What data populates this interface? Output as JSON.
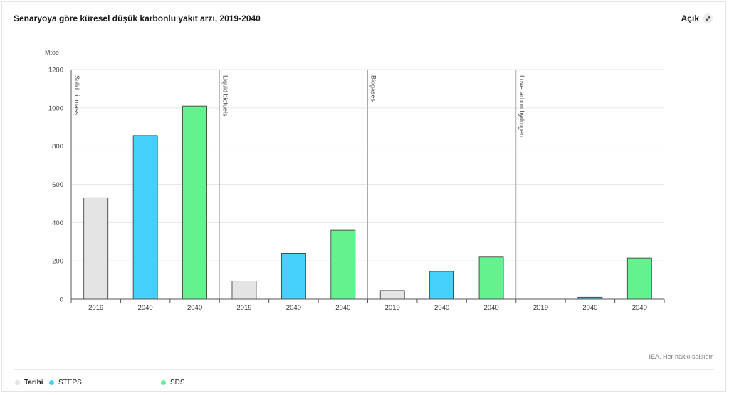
{
  "header": {
    "title": "Senaryoya göre küresel düşük karbonlu yakıt arzı, 2019-2040",
    "open_label": "Açık"
  },
  "source_note": "IEA. Her hakkı saklıdır",
  "colors": {
    "historical": "#e4e4e4",
    "steps": "#45d0fd",
    "sds": "#63f28e",
    "axis": "#555555",
    "grid": "#e6e6e6",
    "divider": "#aaaaaa"
  },
  "legend": [
    {
      "label": "Tarihi",
      "color": "#e4e4e4",
      "active": true
    },
    {
      "label": "STEPS",
      "color": "#45d0fd",
      "active": false
    },
    {
      "label": "SDS",
      "color": "#63f28e",
      "active": false
    }
  ],
  "chart_data": {
    "type": "bar",
    "ylabel": "Mtoe",
    "ylim": [
      0,
      1200
    ],
    "yticks": [
      0,
      200,
      400,
      600,
      800,
      1000,
      1200
    ],
    "grid": true,
    "groups": [
      {
        "name": "Solid biomass",
        "bars": [
          {
            "category": "2019",
            "series": "Tarihi",
            "value": 530
          },
          {
            "category": "2040",
            "series": "STEPS",
            "value": 855
          },
          {
            "category": "2040",
            "series": "SDS",
            "value": 1010
          }
        ]
      },
      {
        "name": "Liquid biofuels",
        "bars": [
          {
            "category": "2019",
            "series": "Tarihi",
            "value": 95
          },
          {
            "category": "2040",
            "series": "STEPS",
            "value": 240
          },
          {
            "category": "2040",
            "series": "SDS",
            "value": 360
          }
        ]
      },
      {
        "name": "Biogases",
        "bars": [
          {
            "category": "2019",
            "series": "Tarihi",
            "value": 45
          },
          {
            "category": "2040",
            "series": "STEPS",
            "value": 145
          },
          {
            "category": "2040",
            "series": "SDS",
            "value": 220
          }
        ]
      },
      {
        "name": "Low-carbon hydrogen",
        "bars": [
          {
            "category": "2019",
            "series": "Tarihi",
            "value": 0
          },
          {
            "category": "2040",
            "series": "STEPS",
            "value": 10
          },
          {
            "category": "2040",
            "series": "SDS",
            "value": 215
          }
        ]
      }
    ]
  }
}
